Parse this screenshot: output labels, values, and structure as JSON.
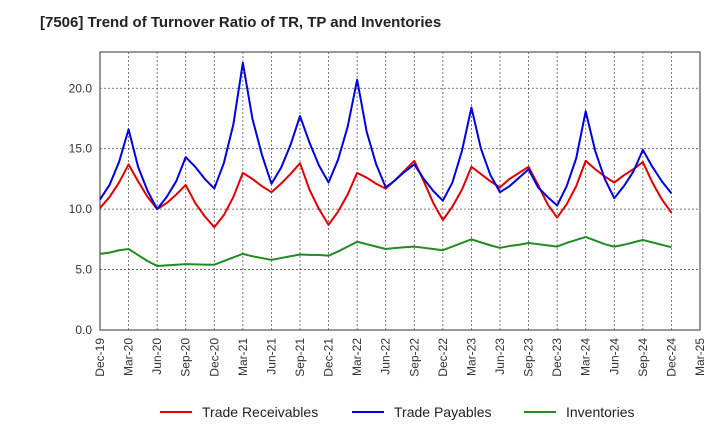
{
  "title": "[7506]  Trend of Turnover Ratio of TR, TP and Inventories",
  "colors": {
    "trade_receivables": "#e00000",
    "trade_payables": "#0000e0",
    "inventories": "#228b22"
  },
  "chart_data": {
    "type": "line",
    "title": "[7506]  Trend of Turnover Ratio of TR, TP and Inventories",
    "xlabel": "",
    "ylabel": "",
    "ylim": [
      0,
      23
    ],
    "yticks": [
      "0.0",
      "5.0",
      "10.0",
      "15.0",
      "20.0"
    ],
    "ytick_values": [
      0,
      5,
      10,
      15,
      20
    ],
    "xticks": [
      "Dec-19",
      "Mar-20",
      "Jun-20",
      "Sep-20",
      "Dec-20",
      "Mar-21",
      "Jun-21",
      "Sep-21",
      "Dec-21",
      "Mar-22",
      "Jun-22",
      "Sep-22",
      "Dec-22",
      "Mar-23",
      "Jun-23",
      "Sep-23",
      "Dec-23",
      "Mar-24",
      "Jun-24",
      "Sep-24",
      "Dec-24",
      "Mar-25"
    ],
    "grid": true,
    "legend_position": "bottom",
    "x": [
      "Dec-19",
      "Jan-20",
      "Feb-20",
      "Mar-20",
      "Apr-20",
      "May-20",
      "Jun-20",
      "Jul-20",
      "Aug-20",
      "Sep-20",
      "Oct-20",
      "Nov-20",
      "Dec-20",
      "Jan-21",
      "Feb-21",
      "Mar-21",
      "Apr-21",
      "May-21",
      "Jun-21",
      "Jul-21",
      "Aug-21",
      "Sep-21",
      "Oct-21",
      "Nov-21",
      "Dec-21",
      "Jan-22",
      "Feb-22",
      "Mar-22",
      "Apr-22",
      "May-22",
      "Jun-22",
      "Jul-22",
      "Aug-22",
      "Sep-22",
      "Oct-22",
      "Nov-22",
      "Dec-22",
      "Jan-23",
      "Feb-23",
      "Mar-23",
      "Apr-23",
      "May-23",
      "Jun-23",
      "Jul-23",
      "Aug-23",
      "Sep-23",
      "Oct-23",
      "Nov-23",
      "Dec-23",
      "Jan-24",
      "Feb-24",
      "Mar-24",
      "Apr-24",
      "May-24",
      "Jun-24",
      "Jul-24",
      "Aug-24",
      "Sep-24",
      "Oct-24",
      "Nov-24",
      "Dec-24"
    ],
    "series": [
      {
        "name": "Trade Receivables",
        "color_key": "trade_receivables",
        "values": [
          10.1,
          11.0,
          12.2,
          13.7,
          12.3,
          11.0,
          10.0,
          10.5,
          11.2,
          12.0,
          10.5,
          9.4,
          8.5,
          9.5,
          11.0,
          13.0,
          12.5,
          11.9,
          11.4,
          12.1,
          12.9,
          13.8,
          11.6,
          10.0,
          8.7,
          9.8,
          11.2,
          13.0,
          12.6,
          12.1,
          11.7,
          12.4,
          13.2,
          14.0,
          12.3,
          10.5,
          9.1,
          10.2,
          11.6,
          13.5,
          12.9,
          12.3,
          11.8,
          12.5,
          13.0,
          13.5,
          12.0,
          10.4,
          9.3,
          10.4,
          11.9,
          14.0,
          13.3,
          12.7,
          12.2,
          12.8,
          13.3,
          13.9,
          12.2,
          10.8,
          9.7
        ]
      },
      {
        "name": "Trade Payables",
        "color_key": "trade_payables",
        "values": [
          10.8,
          12.0,
          13.9,
          16.6,
          13.5,
          11.5,
          10.0,
          11.0,
          12.3,
          14.3,
          13.5,
          12.5,
          11.7,
          13.8,
          17.0,
          22.1,
          17.5,
          14.5,
          12.1,
          13.4,
          15.3,
          17.7,
          15.5,
          13.6,
          12.2,
          14.1,
          16.8,
          20.7,
          16.4,
          13.7,
          11.8,
          12.4,
          13.1,
          13.7,
          12.5,
          11.5,
          10.7,
          12.2,
          14.8,
          18.4,
          15.0,
          12.8,
          11.4,
          11.9,
          12.6,
          13.3,
          11.8,
          11.0,
          10.3,
          11.9,
          14.2,
          18.1,
          14.8,
          12.5,
          10.9,
          11.9,
          13.1,
          14.9,
          13.5,
          12.3,
          11.3
        ]
      },
      {
        "name": "Inventories",
        "color_key": "inventories",
        "values": [
          6.3,
          6.4,
          6.6,
          6.7,
          6.2,
          5.7,
          5.3,
          5.35,
          5.4,
          5.45,
          5.43,
          5.41,
          5.4,
          5.7,
          6.0,
          6.3,
          6.1,
          5.95,
          5.8,
          5.95,
          6.1,
          6.25,
          6.22,
          6.2,
          6.15,
          6.5,
          6.9,
          7.3,
          7.1,
          6.9,
          6.7,
          6.78,
          6.85,
          6.9,
          6.8,
          6.7,
          6.6,
          6.9,
          7.2,
          7.5,
          7.25,
          7.0,
          6.8,
          6.95,
          7.05,
          7.2,
          7.1,
          7.0,
          6.9,
          7.2,
          7.45,
          7.7,
          7.4,
          7.1,
          6.9,
          7.05,
          7.25,
          7.45,
          7.25,
          7.05,
          6.85
        ]
      }
    ]
  }
}
